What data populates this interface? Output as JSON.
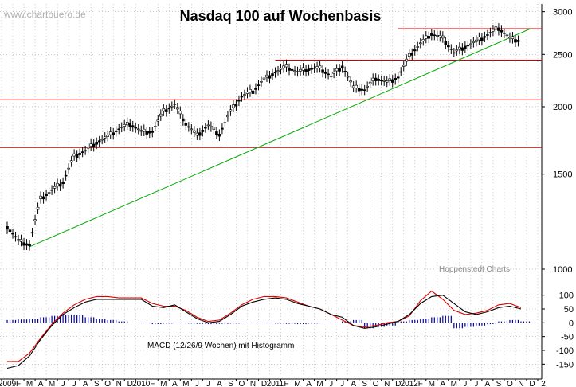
{
  "header": {
    "title": "Nasdaq 100 auf Wochenbasis",
    "watermark": "www.chartbuero.de",
    "credit": "Hoppenstedt Charts",
    "macd_label": "MACD (12/26/9 Wochen) mit Histogramm"
  },
  "colors": {
    "price": "#000000",
    "resistance_lines": "#cc0000",
    "trend_line": "#00aa00",
    "macd": "#000000",
    "signal": "#dd0000",
    "histogram": "#000099",
    "grid": "#aaaaaa",
    "watermark": "#b0b0b0"
  },
  "chart_data": [
    {
      "type": "line",
      "subtype": "ohlc-weekly",
      "title": "Nasdaq 100 auf Wochenbasis",
      "y_scale": "log",
      "ylim": [
        960,
        3100
      ],
      "y_ticks": [
        1000,
        1500,
        2000,
        2500,
        3000
      ],
      "y_tick_labels": [
        "1000",
        "1500",
        "2000",
        "2500",
        "3000"
      ],
      "x_range": [
        "2009-01",
        "2012-12"
      ],
      "x_tick_labels": [
        "2009",
        "F",
        "M",
        "A",
        "M",
        "J",
        "J",
        "A",
        "S",
        "O",
        "N",
        "D",
        "2010",
        "F",
        "M",
        "A",
        "M",
        "J",
        "J",
        "A",
        "S",
        "O",
        "N",
        "D",
        "2011",
        "F",
        "M",
        "A",
        "M",
        "J",
        "J",
        "A",
        "S",
        "O",
        "N",
        "D",
        "2012",
        "F",
        "M",
        "A",
        "M",
        "J",
        "J",
        "A",
        "S",
        "O",
        "N",
        "D",
        "2"
      ],
      "grid": true,
      "price_close": {
        "x": [
          "2009-01",
          "2009-02",
          "2009-03",
          "2009-04",
          "2009-05",
          "2009-06",
          "2009-07",
          "2009-08",
          "2009-09",
          "2009-10",
          "2009-11",
          "2009-12",
          "2010-01",
          "2010-02",
          "2010-03",
          "2010-04",
          "2010-05",
          "2010-06",
          "2010-07",
          "2010-08",
          "2010-09",
          "2010-10",
          "2010-11",
          "2010-12",
          "2011-01",
          "2011-02",
          "2011-03",
          "2011-04",
          "2011-05",
          "2011-06",
          "2011-07",
          "2011-08",
          "2011-09",
          "2011-10",
          "2011-11",
          "2011-12",
          "2012-01",
          "2012-02",
          "2012-03",
          "2012-04",
          "2012-05",
          "2012-06",
          "2012-07",
          "2012-08",
          "2012-09",
          "2012-10",
          "2012-11"
        ],
        "y": [
          1200,
          1130,
          1110,
          1350,
          1400,
          1450,
          1620,
          1660,
          1720,
          1760,
          1820,
          1860,
          1800,
          1800,
          1960,
          2020,
          1860,
          1770,
          1850,
          1780,
          1960,
          2090,
          2140,
          2250,
          2320,
          2370,
          2320,
          2350,
          2360,
          2280,
          2380,
          2170,
          2150,
          2260,
          2220,
          2270,
          2480,
          2620,
          2730,
          2680,
          2520,
          2590,
          2640,
          2720,
          2800,
          2680,
          2650
        ]
      },
      "horizontal_lines": [
        {
          "name": "",
          "y": 1680,
          "from": "2009-01",
          "to": "2012-12"
        },
        {
          "name": "",
          "y": 2060,
          "from": "2009-01",
          "to": "2012-12"
        },
        {
          "name": "",
          "y": 2440,
          "from": "2011-01",
          "to": "2012-12"
        },
        {
          "name": "",
          "y": 2790,
          "from": "2011-12",
          "to": "2012-12"
        }
      ],
      "trend_line": {
        "from": {
          "x": "2009-03",
          "y": 1100
        },
        "to": {
          "x": "2012-11",
          "y": 2790
        }
      }
    },
    {
      "type": "line",
      "title": "MACD (12/26/9 Wochen) mit Histogramm",
      "ylim": [
        -175,
        125
      ],
      "y_ticks": [
        100,
        50,
        0,
        -50,
        -100,
        -150
      ],
      "y_tick_labels": [
        "100",
        "50",
        "0",
        "-50",
        "-100",
        "-150"
      ],
      "x": [
        "2009-01",
        "2009-02",
        "2009-03",
        "2009-04",
        "2009-05",
        "2009-06",
        "2009-07",
        "2009-08",
        "2009-09",
        "2009-10",
        "2009-11",
        "2009-12",
        "2010-01",
        "2010-02",
        "2010-03",
        "2010-04",
        "2010-05",
        "2010-06",
        "2010-07",
        "2010-08",
        "2010-09",
        "2010-10",
        "2010-11",
        "2010-12",
        "2011-01",
        "2011-02",
        "2011-03",
        "2011-04",
        "2011-05",
        "2011-06",
        "2011-07",
        "2011-08",
        "2011-09",
        "2011-10",
        "2011-11",
        "2011-12",
        "2012-01",
        "2012-02",
        "2012-03",
        "2012-04",
        "2012-05",
        "2012-06",
        "2012-07",
        "2012-08",
        "2012-09",
        "2012-10",
        "2012-11"
      ],
      "series": [
        {
          "name": "",
          "role": "macd",
          "values": [
            -165,
            -155,
            -120,
            -60,
            -10,
            30,
            55,
            75,
            85,
            85,
            85,
            85,
            85,
            60,
            55,
            65,
            40,
            15,
            0,
            5,
            30,
            60,
            75,
            85,
            90,
            85,
            70,
            60,
            50,
            30,
            20,
            -10,
            -20,
            -15,
            -5,
            5,
            30,
            70,
            95,
            100,
            70,
            40,
            30,
            40,
            55,
            60,
            50
          ]
        },
        {
          "name": "",
          "role": "signal",
          "values": [
            -140,
            -140,
            -110,
            -55,
            -5,
            35,
            65,
            85,
            95,
            95,
            90,
            90,
            90,
            70,
            60,
            60,
            45,
            20,
            5,
            10,
            35,
            65,
            85,
            95,
            95,
            90,
            75,
            60,
            50,
            30,
            10,
            -10,
            -15,
            -10,
            0,
            5,
            25,
            80,
            115,
            85,
            45,
            30,
            35,
            45,
            65,
            70,
            55
          ]
        },
        {
          "name": "",
          "role": "histogram",
          "values": [
            10,
            12,
            15,
            20,
            25,
            30,
            28,
            20,
            15,
            10,
            5,
            0,
            -2,
            -5,
            -3,
            -1,
            -3,
            -4,
            -5,
            -4,
            -3,
            -2,
            -1,
            -2,
            -3,
            -4,
            -5,
            -3,
            -2,
            -1,
            5,
            10,
            -20,
            -15,
            -10,
            5,
            10,
            15,
            20,
            25,
            -20,
            -15,
            -10,
            -5,
            5,
            10,
            5
          ]
        }
      ]
    }
  ]
}
